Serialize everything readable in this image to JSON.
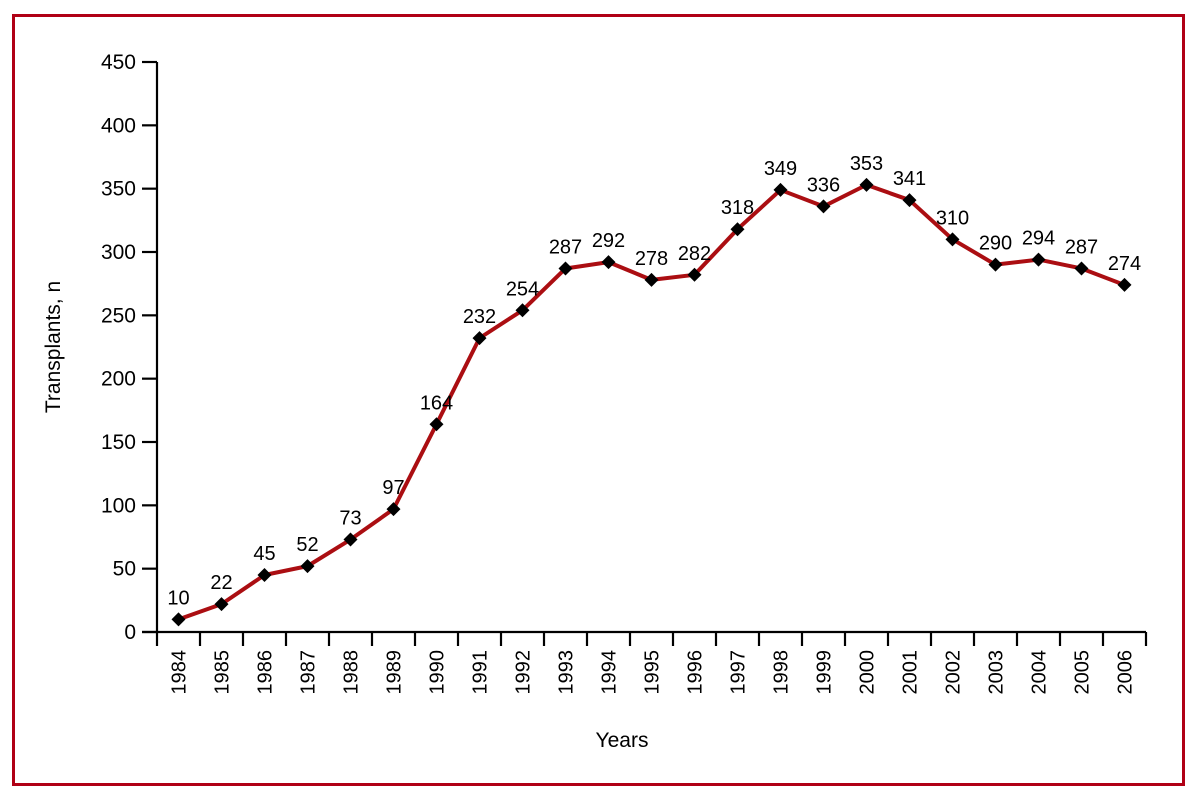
{
  "chart_data": {
    "type": "line",
    "title": "",
    "xlabel": "Years",
    "ylabel": "Transplants, n",
    "categories": [
      "1984",
      "1985",
      "1986",
      "1987",
      "1988",
      "1989",
      "1990",
      "1991",
      "1992",
      "1993",
      "1994",
      "1995",
      "1996",
      "1997",
      "1998",
      "1999",
      "2000",
      "2001",
      "2002",
      "2003",
      "2004",
      "2005",
      "2006"
    ],
    "series": [
      {
        "name": "Transplants",
        "values": [
          10,
          22,
          45,
          52,
          73,
          97,
          164,
          232,
          254,
          287,
          292,
          278,
          282,
          318,
          349,
          336,
          353,
          341,
          310,
          290,
          294,
          287,
          274
        ]
      }
    ],
    "point_labels_shown": true,
    "ylim": [
      0,
      450
    ],
    "yticks": [
      0,
      50,
      100,
      150,
      200,
      250,
      300,
      350,
      400,
      450
    ],
    "grid": false,
    "legend_position": "none",
    "colors": {
      "line": "#AB0E12",
      "marker": "#000000",
      "axis": "#000000",
      "frame_border": "#B00015",
      "background": "#FFFFFF"
    }
  }
}
